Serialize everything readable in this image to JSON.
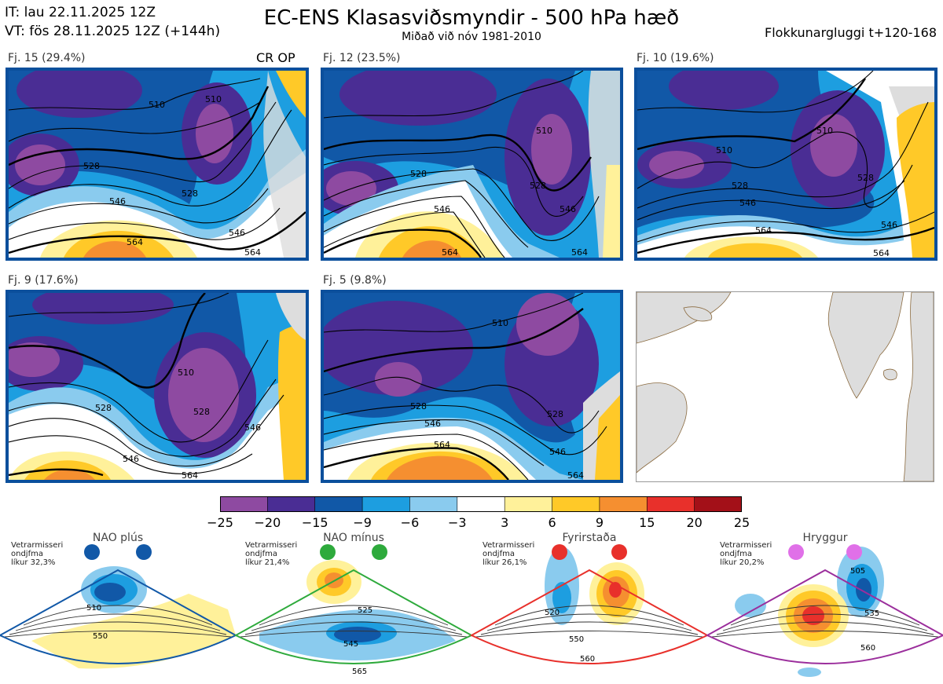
{
  "header": {
    "init_time": "IT: lau 22.11.2025 12Z",
    "valid_time": "VT: fös 28.11.2025 12Z  (+144h)",
    "title": "EC-ENS Klasasviðsmyndir - 500 hPa hæð",
    "subtitle": "Miðað við nóv 1981-2010",
    "window": "Flokkunargluggi t+120-168"
  },
  "cr_op_label": "CR OP",
  "panels": [
    {
      "label": "Fj. 15 (29.4%)",
      "contours": [
        "510",
        "510",
        "528",
        "528",
        "546",
        "546",
        "564",
        "564"
      ]
    },
    {
      "label": "Fj. 12 (23.5%)",
      "contours": [
        "510",
        "528",
        "528",
        "546",
        "546",
        "564",
        "564"
      ]
    },
    {
      "label": "Fj. 10 (19.6%)",
      "contours": [
        "510",
        "510",
        "528",
        "528",
        "546",
        "546",
        "564",
        "564"
      ]
    },
    {
      "label": "Fj. 9 (17.6%)",
      "contours": [
        "510",
        "528",
        "528",
        "546",
        "546",
        "564"
      ]
    },
    {
      "label": "Fj. 5 (9.8%)",
      "contours": [
        "510",
        "528",
        "528",
        "546",
        "546",
        "564",
        "564"
      ]
    }
  ],
  "colors": {
    "border": "#0b4f9c",
    "scale": [
      "#8e4aa1",
      "#4a2d94",
      "#1158a7",
      "#1d9ee0",
      "#8acbee",
      "#ffffff",
      "#fff19a",
      "#ffc928",
      "#f58f30",
      "#e8302b",
      "#a31018"
    ],
    "land": "#dddddd",
    "coast": "#8a6a3f"
  },
  "chart_data": {
    "type": "heatmap",
    "title": "EC-ENS Klasasviðsmyndir - 500 hPa hæð",
    "colorbar": {
      "ticks": [
        "−25",
        "−20",
        "−15",
        "−9",
        "−6",
        "−3",
        "3",
        "6",
        "9",
        "15",
        "20",
        "25"
      ],
      "boundaries": [
        -25,
        -20,
        -15,
        -9,
        -6,
        -3,
        3,
        6,
        9,
        15,
        20,
        25
      ]
    },
    "clusters": [
      {
        "name": "Fj. 15",
        "percent": 29.4
      },
      {
        "name": "Fj. 12",
        "percent": 23.5
      },
      {
        "name": "Fj. 10",
        "percent": 19.6
      },
      {
        "name": "Fj. 9",
        "percent": 17.6
      },
      {
        "name": "Fj. 5",
        "percent": 9.8
      }
    ],
    "regimes": [
      {
        "name": "NAO plús",
        "caption": [
          "Vetrarmisseri",
          "ondjfma",
          "líkur 32,3%"
        ],
        "probability": 32.3,
        "color": "#1158a7",
        "contours": [
          "510",
          "550"
        ]
      },
      {
        "name": "NAO mínus",
        "caption": [
          "Vetrarmisseri",
          "ondjfma",
          "líkur 21,4%"
        ],
        "probability": 21.4,
        "color": "#2eaa3c",
        "contours": [
          "525",
          "545",
          "565"
        ]
      },
      {
        "name": "Fyrirstaða",
        "caption": [
          "Vetrarmisseri",
          "ondjfma",
          "líkur 26,1%"
        ],
        "probability": 26.1,
        "color": "#e8302b",
        "contours": [
          "520",
          "550",
          "560"
        ]
      },
      {
        "name": "Hryggur",
        "caption": [
          "Vetrarmisseri",
          "ondjfma",
          "líkur 20,2%"
        ],
        "probability": 20.2,
        "color": "#9b2e9c",
        "contours": [
          "505",
          "535",
          "560"
        ]
      }
    ]
  }
}
